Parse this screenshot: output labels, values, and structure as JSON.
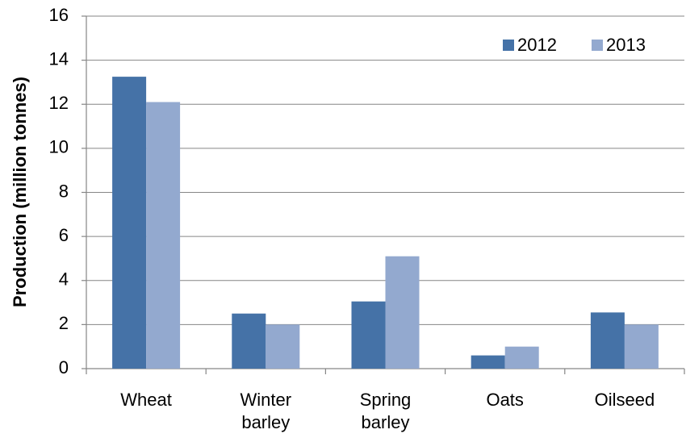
{
  "chart_data": {
    "type": "bar",
    "y_label": "Production (million tonnes)",
    "categories": [
      "Wheat",
      "Winter barley",
      "Spring barley",
      "Oats",
      "Oilseed"
    ],
    "series": [
      {
        "name": "2012",
        "color": "#4572a7",
        "values": [
          13.25,
          2.5,
          3.05,
          0.6,
          2.55
        ]
      },
      {
        "name": "2013",
        "color": "#93a9cf",
        "values": [
          12.1,
          2.0,
          5.1,
          1.0,
          2.0
        ]
      }
    ],
    "ylim": [
      0,
      16
    ],
    "yticks": [
      0,
      2,
      4,
      6,
      8,
      10,
      12,
      14,
      16
    ],
    "grid": true,
    "legend": "top-right"
  }
}
